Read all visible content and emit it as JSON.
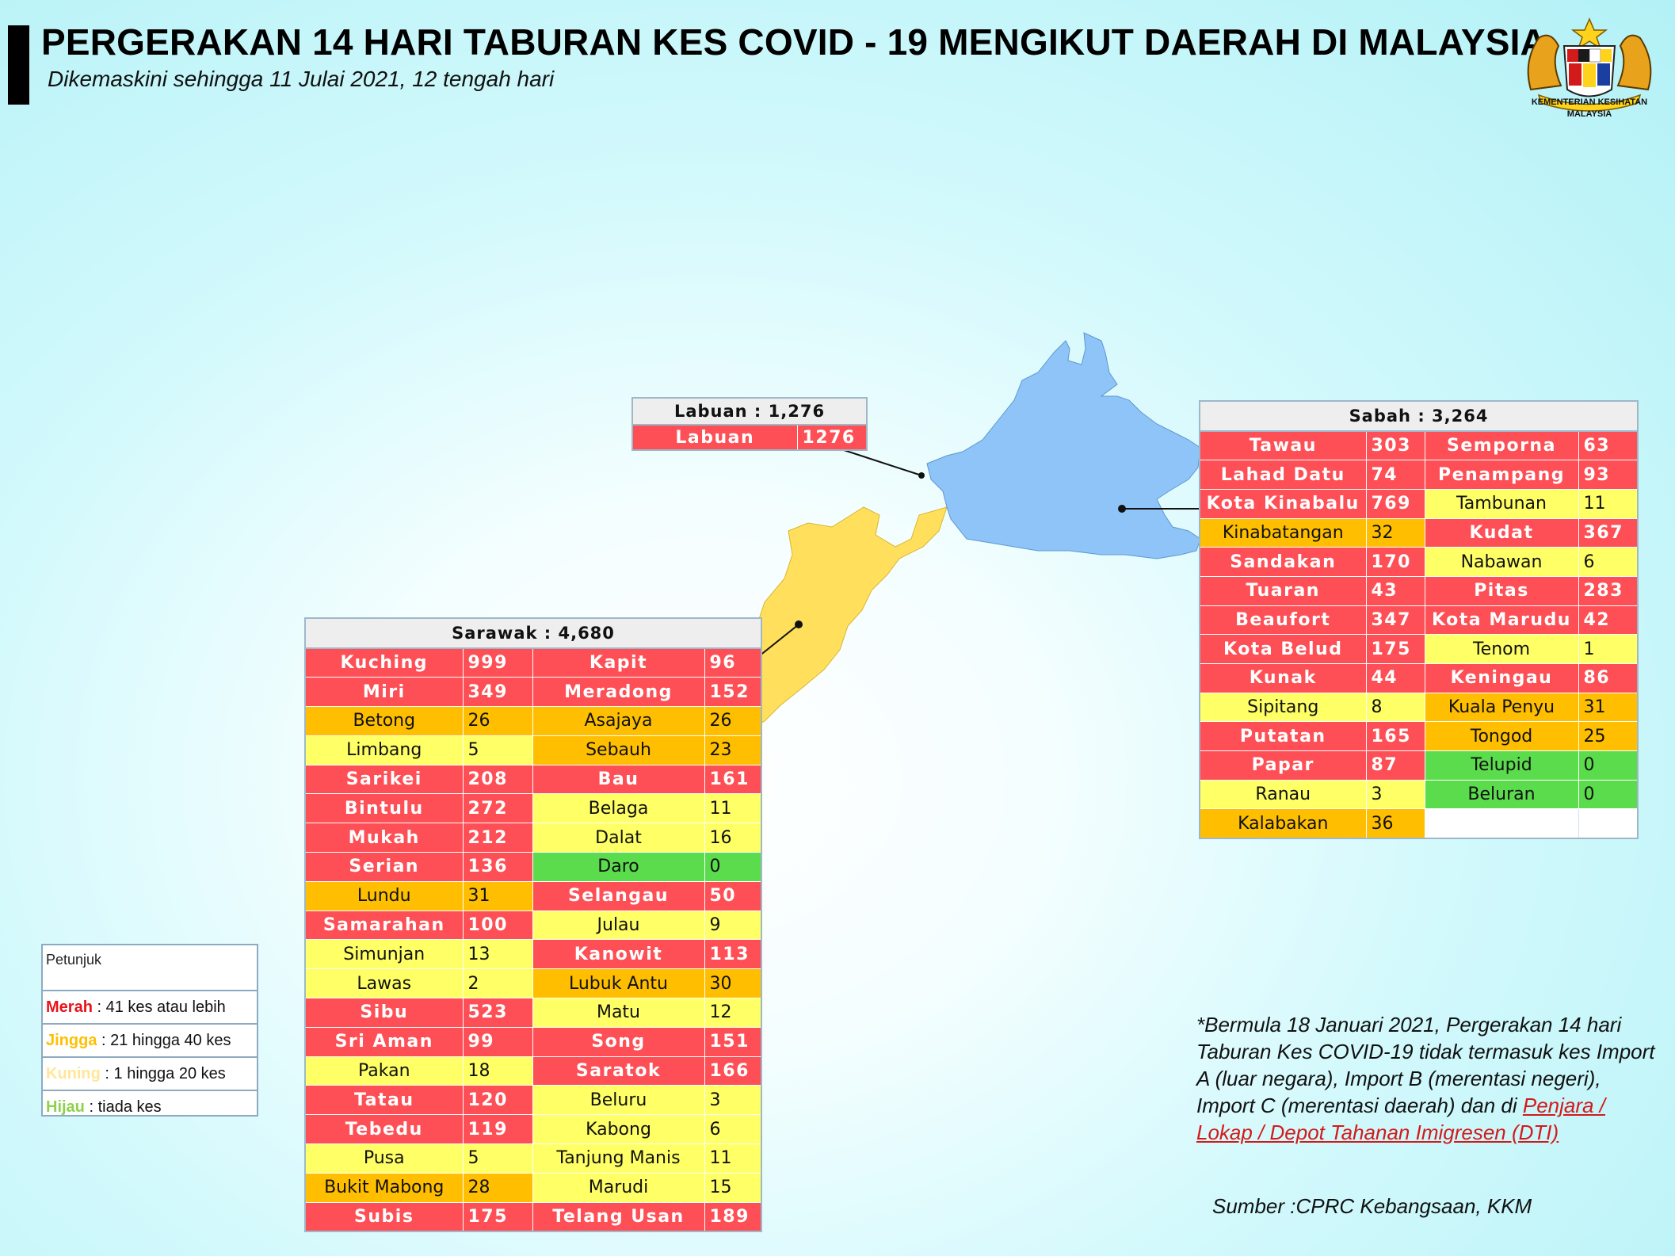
{
  "header": {
    "title": "PERGERAKAN 14 HARI TABURAN KES COVID - 19 MENGIKUT DAERAH DI MALAYSIA",
    "subtitle": "Dikemaskini sehingga 11 Julai 2021, 12 tengah hari"
  },
  "logo": {
    "line1": "KEMENTERIAN KESIHATAN",
    "line2": "MALAYSIA"
  },
  "colors": {
    "merah": "#fd4f55",
    "jingga": "#ffbf00",
    "kuning": "#ffff66",
    "hijau": "#5bdc4d",
    "sabah_fill": "#8fc4f8",
    "sarawak_fill": "#ffdf5c"
  },
  "labuan": {
    "header": "Labuan : 1,276",
    "rows": [
      {
        "name": "Labuan",
        "value": "1276",
        "color": "r"
      }
    ]
  },
  "sabah": {
    "header": "Sabah : 3,264",
    "rows": [
      [
        {
          "name": "Tawau",
          "value": "303",
          "color": "r"
        },
        {
          "name": "Semporna",
          "value": "63",
          "color": "r"
        }
      ],
      [
        {
          "name": "Lahad Datu",
          "value": "74",
          "color": "r"
        },
        {
          "name": "Penampang",
          "value": "93",
          "color": "r"
        }
      ],
      [
        {
          "name": "Kota Kinabalu",
          "value": "769",
          "color": "r"
        },
        {
          "name": "Tambunan",
          "value": "11",
          "color": "y"
        }
      ],
      [
        {
          "name": "Kinabatangan",
          "value": "32",
          "color": "o"
        },
        {
          "name": "Kudat",
          "value": "367",
          "color": "r"
        }
      ],
      [
        {
          "name": "Sandakan",
          "value": "170",
          "color": "r"
        },
        {
          "name": "Nabawan",
          "value": "6",
          "color": "y"
        }
      ],
      [
        {
          "name": "Tuaran",
          "value": "43",
          "color": "r"
        },
        {
          "name": "Pitas",
          "value": "283",
          "color": "r"
        }
      ],
      [
        {
          "name": "Beaufort",
          "value": "347",
          "color": "r"
        },
        {
          "name": "Kota Marudu",
          "value": "42",
          "color": "r"
        }
      ],
      [
        {
          "name": "Kota Belud",
          "value": "175",
          "color": "r"
        },
        {
          "name": "Tenom",
          "value": "1",
          "color": "y"
        }
      ],
      [
        {
          "name": "Kunak",
          "value": "44",
          "color": "r"
        },
        {
          "name": "Keningau",
          "value": "86",
          "color": "r"
        }
      ],
      [
        {
          "name": "Sipitang",
          "value": "8",
          "color": "y"
        },
        {
          "name": "Kuala Penyu",
          "value": "31",
          "color": "o"
        }
      ],
      [
        {
          "name": "Putatan",
          "value": "165",
          "color": "r"
        },
        {
          "name": "Tongod",
          "value": "25",
          "color": "o"
        }
      ],
      [
        {
          "name": "Papar",
          "value": "87",
          "color": "r"
        },
        {
          "name": "Telupid",
          "value": "0",
          "color": "g"
        }
      ],
      [
        {
          "name": "Ranau",
          "value": "3",
          "color": "y"
        },
        {
          "name": "Beluran",
          "value": "0",
          "color": "g"
        }
      ],
      [
        {
          "name": "Kalabakan",
          "value": "36",
          "color": "o"
        },
        {
          "name": "",
          "value": "",
          "color": "e"
        }
      ]
    ]
  },
  "sarawak": {
    "header": "Sarawak : 4,680",
    "rows": [
      [
        {
          "name": "Kuching",
          "value": "999",
          "color": "r"
        },
        {
          "name": "Kapit",
          "value": "96",
          "color": "r"
        }
      ],
      [
        {
          "name": "Miri",
          "value": "349",
          "color": "r"
        },
        {
          "name": "Meradong",
          "value": "152",
          "color": "r"
        }
      ],
      [
        {
          "name": "Betong",
          "value": "26",
          "color": "o"
        },
        {
          "name": "Asajaya",
          "value": "26",
          "color": "o"
        }
      ],
      [
        {
          "name": "Limbang",
          "value": "5",
          "color": "y"
        },
        {
          "name": "Sebauh",
          "value": "23",
          "color": "o"
        }
      ],
      [
        {
          "name": "Sarikei",
          "value": "208",
          "color": "r"
        },
        {
          "name": "Bau",
          "value": "161",
          "color": "r"
        }
      ],
      [
        {
          "name": "Bintulu",
          "value": "272",
          "color": "r"
        },
        {
          "name": "Belaga",
          "value": "11",
          "color": "y"
        }
      ],
      [
        {
          "name": "Mukah",
          "value": "212",
          "color": "r"
        },
        {
          "name": "Dalat",
          "value": "16",
          "color": "y"
        }
      ],
      [
        {
          "name": "Serian",
          "value": "136",
          "color": "r"
        },
        {
          "name": "Daro",
          "value": "0",
          "color": "g"
        }
      ],
      [
        {
          "name": "Lundu",
          "value": "31",
          "color": "o"
        },
        {
          "name": "Selangau",
          "value": "50",
          "color": "r"
        }
      ],
      [
        {
          "name": "Samarahan",
          "value": "100",
          "color": "r"
        },
        {
          "name": "Julau",
          "value": "9",
          "color": "y"
        }
      ],
      [
        {
          "name": "Simunjan",
          "value": "13",
          "color": "y"
        },
        {
          "name": "Kanowit",
          "value": "113",
          "color": "r"
        }
      ],
      [
        {
          "name": "Lawas",
          "value": "2",
          "color": "y"
        },
        {
          "name": "Lubuk Antu",
          "value": "30",
          "color": "o"
        }
      ],
      [
        {
          "name": "Sibu",
          "value": "523",
          "color": "r"
        },
        {
          "name": "Matu",
          "value": "12",
          "color": "y"
        }
      ],
      [
        {
          "name": "Sri Aman",
          "value": "99",
          "color": "r"
        },
        {
          "name": "Song",
          "value": "151",
          "color": "r"
        }
      ],
      [
        {
          "name": "Pakan",
          "value": "18",
          "color": "y"
        },
        {
          "name": "Saratok",
          "value": "166",
          "color": "r"
        }
      ],
      [
        {
          "name": "Tatau",
          "value": "120",
          "color": "r"
        },
        {
          "name": "Beluru",
          "value": "3",
          "color": "y"
        }
      ],
      [
        {
          "name": "Tebedu",
          "value": "119",
          "color": "r"
        },
        {
          "name": "Kabong",
          "value": "6",
          "color": "y"
        }
      ],
      [
        {
          "name": "Pusa",
          "value": "5",
          "color": "y"
        },
        {
          "name": "Tanjung Manis",
          "value": "11",
          "color": "y"
        }
      ],
      [
        {
          "name": "Bukit Mabong",
          "value": "28",
          "color": "o"
        },
        {
          "name": "Marudi",
          "value": "15",
          "color": "y"
        }
      ],
      [
        {
          "name": "Subis",
          "value": "175",
          "color": "r"
        },
        {
          "name": "Telang Usan",
          "value": "189",
          "color": "r"
        }
      ]
    ]
  },
  "legend": {
    "title": "Petunjuk",
    "items": [
      {
        "key": "Merah",
        "text": " : 41 kes atau lebih",
        "color": "#e8141b"
      },
      {
        "key": "Jingga",
        "text": " : 21 hingga 40 kes",
        "color": "#ffbf00"
      },
      {
        "key": "Kuning",
        "text": " : 1 hingga 20 kes",
        "color": "#ffe699"
      },
      {
        "key": "Hijau",
        "text": " : tiada kes",
        "color": "#8fd14f"
      }
    ]
  },
  "note": {
    "text": "*Bermula 18 Januari 2021, Pergerakan 14 hari Taburan Kes COVID-19 tidak termasuk kes Import A (luar negara), Import B (merentasi negeri), Import C (merentasi daerah) dan di",
    "link": "Penjara / Lokap / Depot Tahanan Imigresen (DTI)"
  },
  "source": "Sumber :CPRC Kebangsaan,  KKM"
}
